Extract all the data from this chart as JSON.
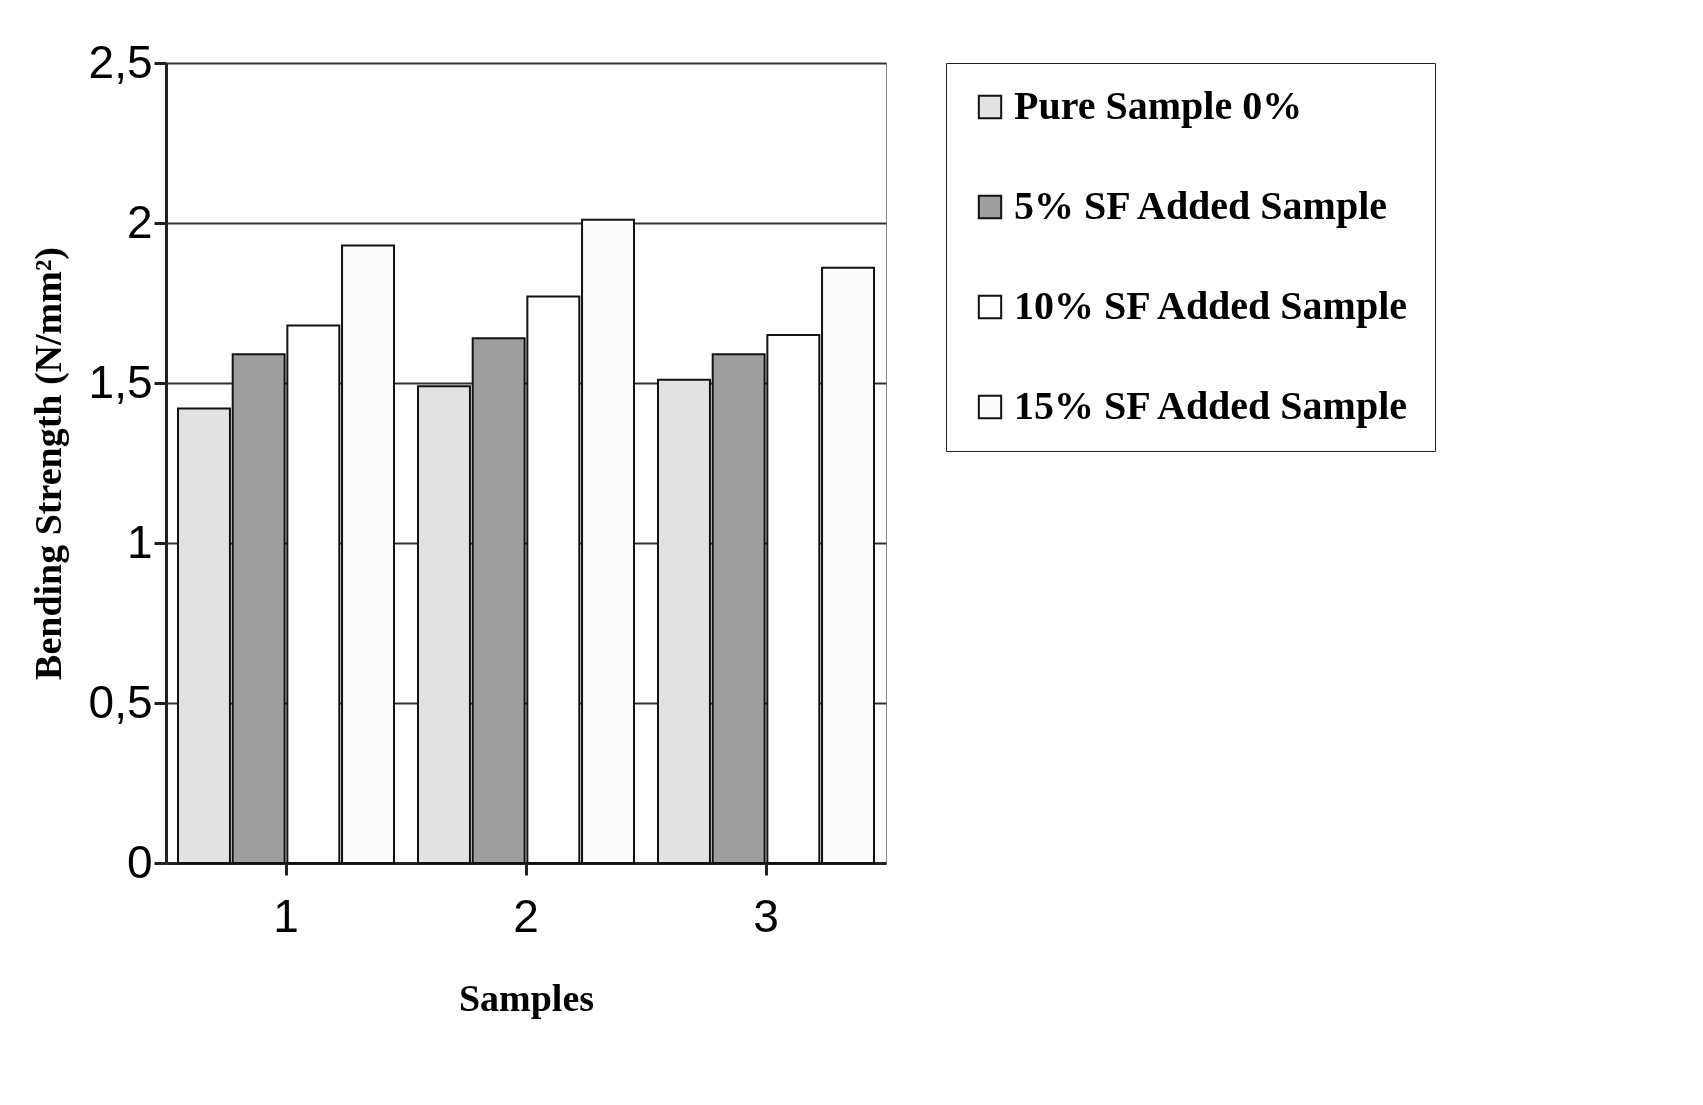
{
  "chart_data": {
    "type": "bar",
    "xlabel": "Samples",
    "ylabel": "Bending Strength (N/mm²)",
    "categories": [
      "1",
      "2",
      "3"
    ],
    "series": [
      {
        "name": "Pure Sample 0%",
        "color": "#e2e2e2",
        "values": [
          1.42,
          1.49,
          1.51
        ]
      },
      {
        "name": "5% SF Added Sample",
        "color": "#9e9e9e",
        "values": [
          1.59,
          1.64,
          1.59
        ]
      },
      {
        "name": "10% SF Added Sample",
        "color": "#ffffff",
        "values": [
          1.68,
          1.77,
          1.65
        ]
      },
      {
        "name": "15% SF Added Sample",
        "color": "#fcfcfc",
        "values": [
          1.93,
          2.01,
          1.86
        ]
      }
    ],
    "ylim": [
      0,
      2.5
    ],
    "yticks": [
      0,
      {
        "value": 0.5,
        "label": "0,5"
      },
      1,
      {
        "value": 1.5,
        "label": "1,5"
      },
      2,
      {
        "value": 2.5,
        "label": "2,5"
      }
    ],
    "grid": "y",
    "legend": "right"
  }
}
